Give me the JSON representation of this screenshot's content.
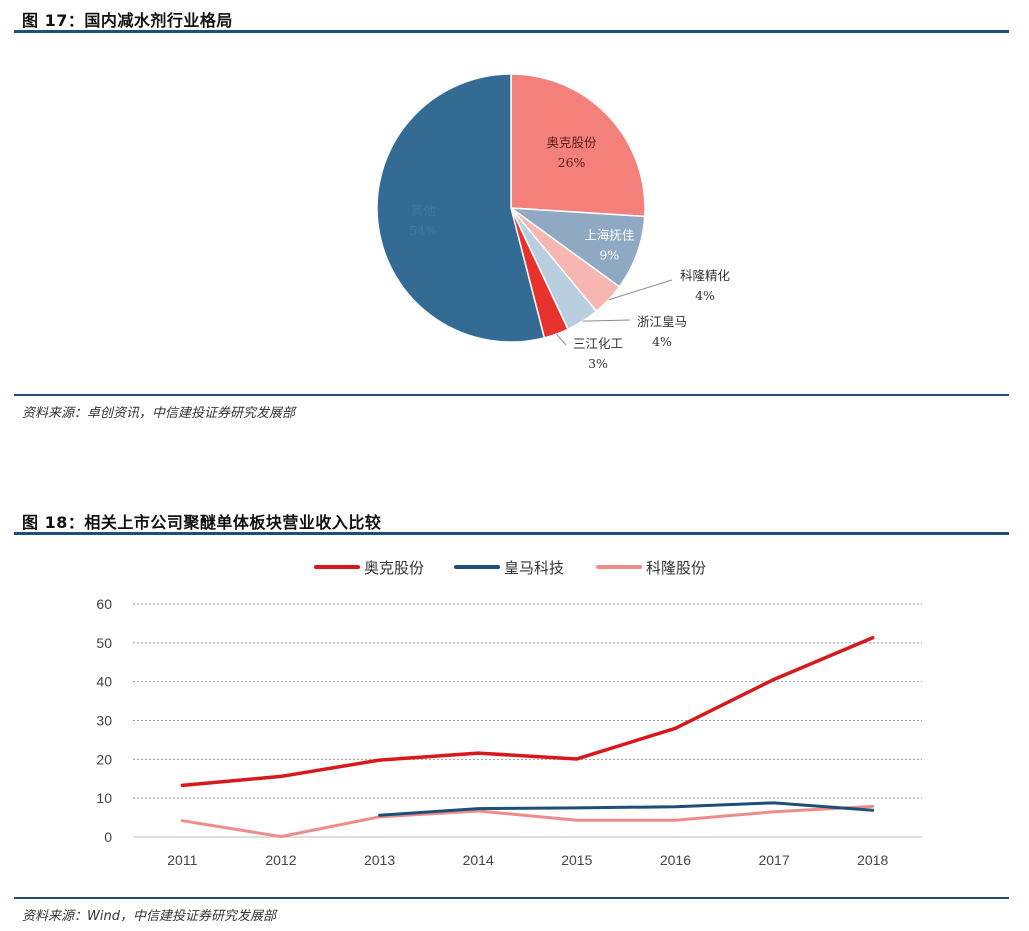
{
  "figure17": {
    "title": "图 17：国内减水剂行业格局",
    "source": "资料来源：卓创资讯，中信建投证券研究发展部"
  },
  "figure18": {
    "title": "图 18：相关上市公司聚醚单体板块营业收入比较",
    "source": "资料来源：Wind，中信建投证券研究发展部"
  },
  "chart_data": [
    {
      "type": "pie",
      "title": "国内减水剂行业格局",
      "slices": [
        {
          "name": "奥克股份",
          "value": 26,
          "label": "26%",
          "color": "#f4807c"
        },
        {
          "name": "上海抚佳",
          "value": 9,
          "label": "9%",
          "color": "#8ea9c1"
        },
        {
          "name": "科隆精化",
          "value": 4,
          "label": "4%",
          "color": "#f7b6b1"
        },
        {
          "name": "浙江皇马",
          "value": 4,
          "label": "4%",
          "color": "#b9cfdf"
        },
        {
          "name": "三江化工",
          "value": 3,
          "label": "3%",
          "color": "#e8322e"
        },
        {
          "name": "其他",
          "value": 54,
          "label": "54%",
          "color": "#336b94"
        }
      ]
    },
    {
      "type": "line",
      "title": "相关上市公司聚醚单体板块营业收入比较",
      "categories": [
        "2011",
        "2012",
        "2013",
        "2014",
        "2015",
        "2016",
        "2017",
        "2018"
      ],
      "ylim": [
        0,
        60
      ],
      "yticks": [
        0,
        10,
        20,
        30,
        40,
        50,
        60
      ],
      "grid": true,
      "legend": "top",
      "series": [
        {
          "name": "奥克股份",
          "color": "#d7191c",
          "values": [
            13.3,
            15.6,
            19.8,
            21.6,
            20.1,
            28.0,
            40.6,
            51.3
          ]
        },
        {
          "name": "皇马科技",
          "color": "#1f4e79",
          "values": [
            null,
            null,
            5.6,
            7.3,
            7.5,
            7.8,
            8.8,
            6.9
          ]
        },
        {
          "name": "科隆股份",
          "color": "#f08b8b",
          "values": [
            4.2,
            0.1,
            5.2,
            6.7,
            4.3,
            4.3,
            6.5,
            7.9
          ]
        }
      ]
    }
  ]
}
